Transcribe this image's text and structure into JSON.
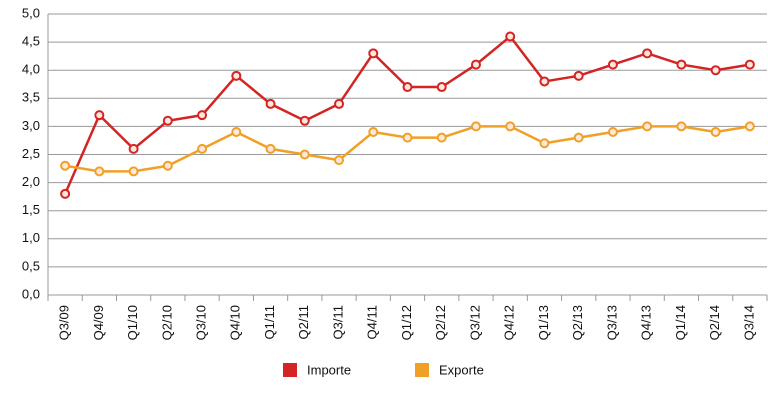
{
  "chart_data": {
    "type": "line",
    "categories": [
      "Q3/09",
      "Q4/09",
      "Q1/10",
      "Q2/10",
      "Q3/10",
      "Q4/10",
      "Q1/11",
      "Q2/11",
      "Q3/11",
      "Q4/11",
      "Q1/12",
      "Q2/12",
      "Q3/12",
      "Q4/12",
      "Q1/13",
      "Q2/13",
      "Q3/13",
      "Q4/13",
      "Q1/14",
      "Q2/14",
      "Q3/14"
    ],
    "series": [
      {
        "name": "Importe",
        "color": "#d42424",
        "values": [
          1.8,
          3.2,
          2.6,
          3.1,
          3.2,
          3.9,
          3.4,
          3.1,
          3.4,
          4.3,
          3.7,
          3.7,
          4.1,
          4.6,
          3.8,
          3.9,
          4.1,
          4.3,
          4.1,
          4.0,
          4.1
        ]
      },
      {
        "name": "Exporte",
        "color": "#f0a024",
        "values": [
          2.3,
          2.2,
          2.2,
          2.3,
          2.6,
          2.9,
          2.6,
          2.5,
          2.4,
          2.9,
          2.8,
          2.8,
          3.0,
          3.0,
          2.7,
          2.8,
          2.9,
          3.0,
          3.0,
          2.9,
          3.0
        ]
      }
    ],
    "ylim": [
      0,
      5
    ],
    "yticks": [
      {
        "value": 0,
        "label": "0,0"
      },
      {
        "value": 0.5,
        "label": "0,5"
      },
      {
        "value": 1,
        "label": "1,0"
      },
      {
        "value": 1.5,
        "label": "1,5"
      },
      {
        "value": 2,
        "label": "2,0"
      },
      {
        "value": 2.5,
        "label": "2,5"
      },
      {
        "value": 3,
        "label": "3,0"
      },
      {
        "value": 3.5,
        "label": "3,5"
      },
      {
        "value": 4,
        "label": "4,0"
      },
      {
        "value": 4.5,
        "label": "4,5"
      },
      {
        "value": 5,
        "label": "5,0"
      }
    ],
    "grid": true
  }
}
